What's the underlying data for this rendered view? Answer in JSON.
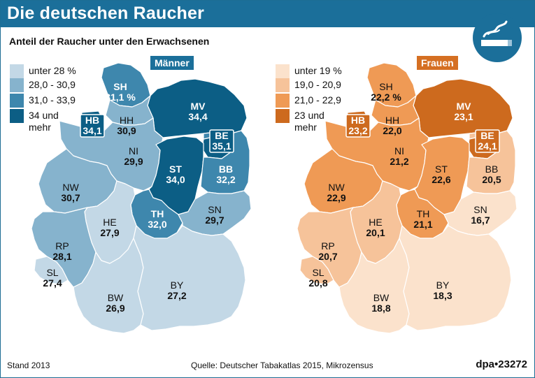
{
  "header": {
    "title": "Die deutschen Raucher",
    "subtitle": "Anteil der Raucher unter den Erwachsenen",
    "icon": "smoking-cigarette-icon"
  },
  "maps": [
    {
      "gender_label": "Männer",
      "accent": "#1b6f9a",
      "legend": [
        {
          "label": "unter 28 %",
          "color": "#c3d8e6"
        },
        {
          "label": "28,0 - 30,9",
          "color": "#86b3cd"
        },
        {
          "label": "31,0 - 33,9",
          "color": "#3e87ad"
        },
        {
          "label": "34 und\nmehr",
          "color": "#0c5e85"
        }
      ],
      "states": [
        {
          "code": "SH",
          "value": "31,1 %",
          "class": 2
        },
        {
          "code": "MV",
          "value": "34,4",
          "class": 3
        },
        {
          "code": "HB",
          "value": "34,1",
          "class": 3
        },
        {
          "code": "HH",
          "value": "30,9",
          "class": 1
        },
        {
          "code": "NI",
          "value": "29,9",
          "class": 1
        },
        {
          "code": "BE",
          "value": "35,1",
          "class": 3
        },
        {
          "code": "ST",
          "value": "34,0",
          "class": 3
        },
        {
          "code": "BB",
          "value": "32,2",
          "class": 2
        },
        {
          "code": "NW",
          "value": "30,7",
          "class": 1
        },
        {
          "code": "TH",
          "value": "32,0",
          "class": 2
        },
        {
          "code": "SN",
          "value": "29,7",
          "class": 1
        },
        {
          "code": "HE",
          "value": "27,9",
          "class": 0
        },
        {
          "code": "RP",
          "value": "28,1",
          "class": 1
        },
        {
          "code": "SL",
          "value": "27,4",
          "class": 0
        },
        {
          "code": "BW",
          "value": "26,9",
          "class": 0
        },
        {
          "code": "BY",
          "value": "27,2",
          "class": 0
        }
      ]
    },
    {
      "gender_label": "Frauen",
      "accent": "#d56f22",
      "legend": [
        {
          "label": "unter 19 %",
          "color": "#fbe2cc"
        },
        {
          "label": "19,0 - 20,9",
          "color": "#f6c39a"
        },
        {
          "label": "21,0 - 22,9",
          "color": "#ef9a55"
        },
        {
          "label": "23 und\nmehr",
          "color": "#cd6a1e"
        }
      ],
      "states": [
        {
          "code": "SH",
          "value": "22,2 %",
          "class": 2
        },
        {
          "code": "MV",
          "value": "23,1",
          "class": 3
        },
        {
          "code": "HB",
          "value": "23,2",
          "class": 3
        },
        {
          "code": "HH",
          "value": "22,0",
          "class": 2
        },
        {
          "code": "NI",
          "value": "21,2",
          "class": 2
        },
        {
          "code": "BE",
          "value": "24,1",
          "class": 3
        },
        {
          "code": "ST",
          "value": "22,6",
          "class": 2
        },
        {
          "code": "BB",
          "value": "20,5",
          "class": 1
        },
        {
          "code": "NW",
          "value": "22,9",
          "class": 2
        },
        {
          "code": "TH",
          "value": "21,1",
          "class": 2
        },
        {
          "code": "SN",
          "value": "16,7",
          "class": 0
        },
        {
          "code": "HE",
          "value": "20,1",
          "class": 1
        },
        {
          "code": "RP",
          "value": "20,7",
          "class": 1
        },
        {
          "code": "SL",
          "value": "20,8",
          "class": 1
        },
        {
          "code": "BW",
          "value": "18,8",
          "class": 0
        },
        {
          "code": "BY",
          "value": "18,3",
          "class": 0
        }
      ]
    }
  ],
  "footer": {
    "status": "Stand 2013",
    "source": "Quelle: Deutscher Tabakatlas 2015, Mikrozensus",
    "agency_prefix": "dpa",
    "agency_id": "23272"
  }
}
